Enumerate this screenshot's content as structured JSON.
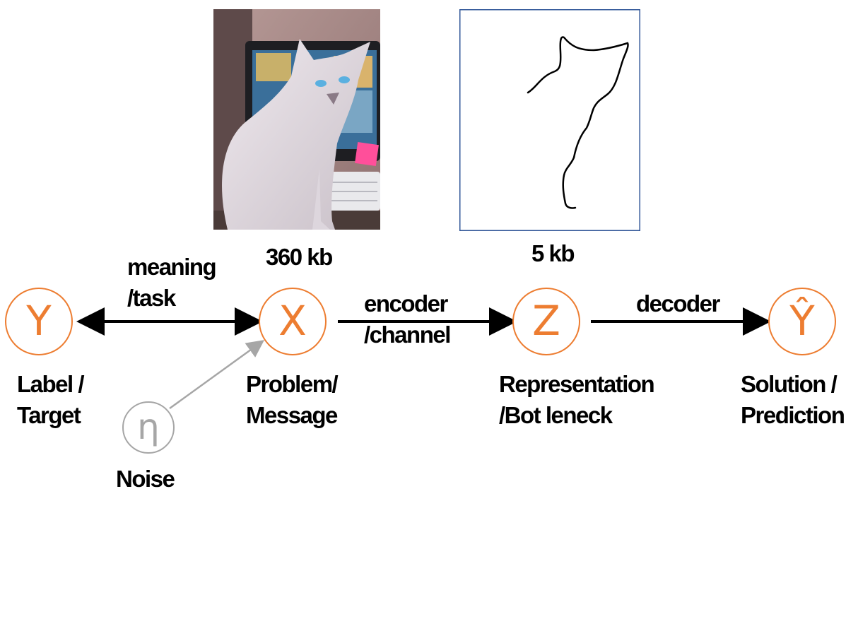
{
  "nodes": {
    "y": {
      "symbol": "Y",
      "caption": "Label /\nTarget"
    },
    "x": {
      "symbol": "X",
      "caption": "Problem/\nMessage"
    },
    "z": {
      "symbol": "Z",
      "caption": "Representation\n/Bot leneck"
    },
    "yhat": {
      "symbol": "Ŷ",
      "caption": "Solution /\nPrediction"
    },
    "noise": {
      "symbol": "η",
      "caption": "Noise"
    }
  },
  "edges": {
    "y_x": "meaning\n/task",
    "x_z": "encoder\n/channel",
    "z_yhat": "decoder"
  },
  "images": {
    "photo": {
      "size_label": "360 kb"
    },
    "sketch": {
      "size_label": "5 kb"
    }
  },
  "colors": {
    "node": "#ED7D31",
    "noise": "#A6A6A6",
    "sketch_border": "#2F5597"
  }
}
